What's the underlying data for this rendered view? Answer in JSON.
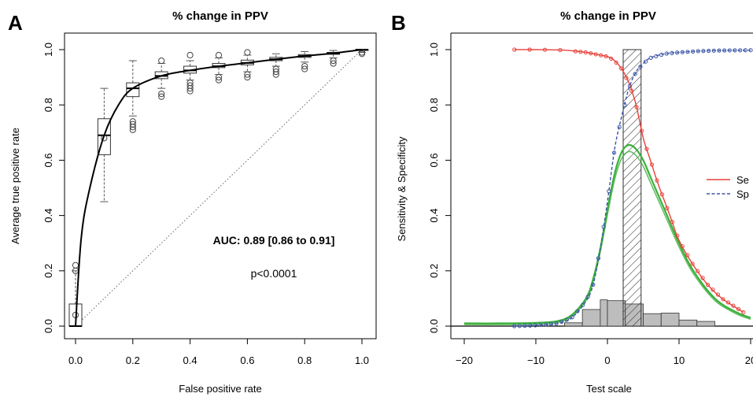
{
  "chart_data": [
    {
      "panel": "A",
      "type": "line",
      "title": "% change in PPV",
      "xlabel": "False positive rate",
      "ylabel": "Average true positive rate",
      "xlim": [
        0,
        1
      ],
      "ylim": [
        0,
        1
      ],
      "xticks": [
        "0.0",
        "0.2",
        "0.4",
        "0.6",
        "0.8",
        "1.0"
      ],
      "yticks": [
        "0.0",
        "0.2",
        "0.4",
        "0.6",
        "0.8",
        "1.0"
      ],
      "annotations": [
        "AUC: 0.89 [0.86 to 0.91]",
        "p<0.0001"
      ],
      "roc_curve": {
        "x": [
          0,
          0.02,
          0.05,
          0.1,
          0.15,
          0.2,
          0.3,
          0.4,
          0.5,
          0.6,
          0.7,
          0.8,
          0.9,
          1.0
        ],
        "y": [
          0.0,
          0.32,
          0.5,
          0.69,
          0.8,
          0.86,
          0.905,
          0.925,
          0.94,
          0.952,
          0.965,
          0.977,
          0.987,
          1.0
        ]
      },
      "boxplots": [
        {
          "x": 0.0,
          "min": 0.0,
          "q1": 0.0,
          "median": 0.0,
          "q3": 0.08,
          "max": 0.2,
          "outliers": [
            0.2,
            0.22,
            0.04
          ]
        },
        {
          "x": 0.1,
          "min": 0.45,
          "q1": 0.62,
          "median": 0.69,
          "q3": 0.75,
          "max": 0.86,
          "outliers": [
            0.68
          ]
        },
        {
          "x": 0.2,
          "min": 0.76,
          "q1": 0.83,
          "median": 0.86,
          "q3": 0.88,
          "max": 0.96,
          "outliers": [
            0.71,
            0.72,
            0.73,
            0.74
          ]
        },
        {
          "x": 0.3,
          "min": 0.86,
          "q1": 0.895,
          "median": 0.905,
          "q3": 0.92,
          "max": 0.95,
          "outliers": [
            0.83,
            0.84,
            0.96
          ]
        },
        {
          "x": 0.4,
          "min": 0.89,
          "q1": 0.915,
          "median": 0.925,
          "q3": 0.94,
          "max": 0.96,
          "outliers": [
            0.85,
            0.86,
            0.87,
            0.88,
            0.98
          ]
        },
        {
          "x": 0.5,
          "min": 0.91,
          "q1": 0.935,
          "median": 0.94,
          "q3": 0.95,
          "max": 0.97,
          "outliers": [
            0.89,
            0.9,
            0.98
          ]
        },
        {
          "x": 0.6,
          "min": 0.92,
          "q1": 0.945,
          "median": 0.952,
          "q3": 0.962,
          "max": 0.98,
          "outliers": [
            0.9,
            0.91,
            0.99
          ]
        },
        {
          "x": 0.7,
          "min": 0.94,
          "q1": 0.96,
          "median": 0.965,
          "q3": 0.972,
          "max": 0.985,
          "outliers": [
            0.91,
            0.92,
            0.93
          ]
        },
        {
          "x": 0.8,
          "min": 0.955,
          "q1": 0.972,
          "median": 0.977,
          "q3": 0.982,
          "max": 0.993,
          "outliers": [
            0.93,
            0.94
          ]
        },
        {
          "x": 0.9,
          "min": 0.97,
          "q1": 0.983,
          "median": 0.987,
          "q3": 0.99,
          "max": 0.997,
          "outliers": [
            0.95,
            0.96
          ]
        },
        {
          "x": 1.0,
          "min": 0.99,
          "q1": 0.997,
          "median": 1.0,
          "q3": 1.0,
          "max": 1.0,
          "outliers": [
            0.99,
            0.985
          ]
        }
      ]
    },
    {
      "panel": "B",
      "type": "line",
      "title": "% change in PPV",
      "xlabel": "Test scale",
      "ylabel": "Sensitivity & Specificity",
      "xlim": [
        -20,
        20
      ],
      "ylim": [
        0,
        1
      ],
      "xticks": [
        "-20",
        "-10",
        "0",
        "10",
        "20"
      ],
      "yticks": [
        "0.0",
        "0.2",
        "0.4",
        "0.6",
        "0.8",
        "1.0"
      ],
      "legend_position": "right",
      "series": [
        {
          "name": "Se",
          "color": "#e8413a",
          "style": "solid",
          "x": [
            -13,
            -10,
            -6,
            -3,
            -1,
            0,
            1,
            2,
            3,
            4,
            5,
            6,
            7,
            8,
            9,
            10,
            12,
            14,
            16,
            19
          ],
          "y": [
            1.0,
            1.0,
            0.998,
            0.99,
            0.98,
            0.975,
            0.96,
            0.93,
            0.88,
            0.8,
            0.68,
            0.6,
            0.52,
            0.45,
            0.38,
            0.31,
            0.22,
            0.15,
            0.1,
            0.05
          ]
        },
        {
          "name": "Sp",
          "color": "#3b55a8",
          "style": "dashed",
          "x": [
            -13,
            -10,
            -7,
            -5,
            -3,
            -2,
            -1,
            0,
            1,
            2,
            3,
            4,
            5,
            6,
            8,
            10,
            13,
            16,
            20
          ],
          "y": [
            0.0,
            0.003,
            0.01,
            0.03,
            0.09,
            0.15,
            0.28,
            0.45,
            0.64,
            0.76,
            0.86,
            0.92,
            0.95,
            0.97,
            0.985,
            0.99,
            0.995,
            0.997,
            0.998
          ]
        }
      ],
      "density": {
        "color": "#3bb03b",
        "x": [
          -20,
          -15,
          -10,
          -7,
          -5,
          -3,
          -2,
          -1,
          0,
          1,
          2,
          3,
          4,
          5,
          6,
          8,
          10,
          12,
          15,
          18,
          20
        ],
        "y": [
          0.01,
          0.01,
          0.012,
          0.018,
          0.04,
          0.1,
          0.17,
          0.28,
          0.42,
          0.55,
          0.63,
          0.655,
          0.64,
          0.6,
          0.54,
          0.42,
          0.3,
          0.2,
          0.1,
          0.05,
          0.03
        ]
      },
      "histogram": {
        "bin_edges": [
          -6,
          -3.5,
          -1,
          0,
          2.5,
          5,
          7.5,
          10,
          12.5,
          15
        ],
        "counts": [
          0.012,
          0.06,
          0.095,
          0.092,
          0.08,
          0.045,
          0.047,
          0.022,
          0.017
        ]
      },
      "hatched_interval": [
        2.2,
        4.7
      ]
    }
  ]
}
